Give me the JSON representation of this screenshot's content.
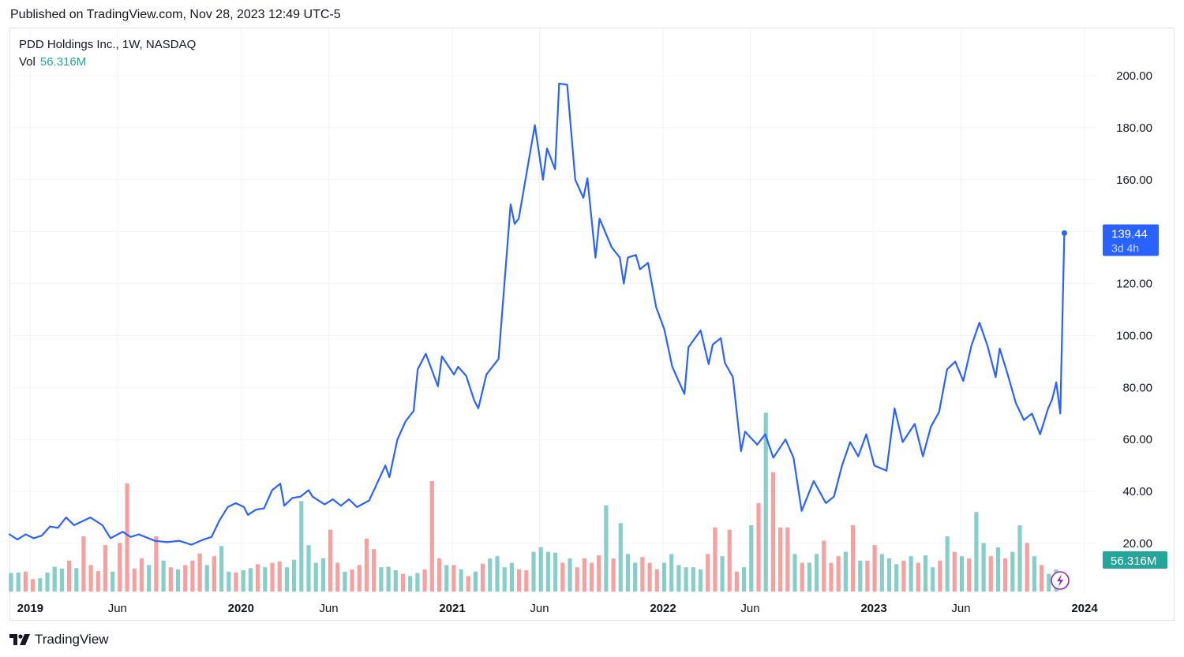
{
  "header": {
    "published": "Published on TradingView.com, Nov 28, 2023 12:49 UTC-5"
  },
  "legend": {
    "title": "PDD Holdings Inc., 1W, NASDAQ",
    "vol_label": "Vol",
    "vol_value": "56.316M"
  },
  "footer": {
    "brand": "TradingView"
  },
  "colors": {
    "line": "#2962ff",
    "vol_up": "#26a69a",
    "vol_down": "#ef5350",
    "grid": "#f0f3fa",
    "axis_text": "#131722",
    "badge_vol": "#26a69a",
    "badge_price": "#2962ff"
  },
  "chart_data": {
    "type": "line",
    "title": "PDD Holdings Inc., 1W, NASDAQ",
    "yticks": [
      "200.00",
      "180.00",
      "160.00",
      "140.00",
      "120.00",
      "100.00",
      "80.00",
      "60.00",
      "40.00",
      "20.00"
    ],
    "ylim": [
      0,
      200
    ],
    "xlim": [
      "2018-11-26",
      "2024-01-01"
    ],
    "xticks": [
      {
        "label": "2019",
        "date": "2019-01-01",
        "bold": true
      },
      {
        "label": "Jun",
        "date": "2019-06-01",
        "bold": false
      },
      {
        "label": "2020",
        "date": "2020-01-01",
        "bold": true
      },
      {
        "label": "Jun",
        "date": "2020-06-01",
        "bold": false
      },
      {
        "label": "2021",
        "date": "2021-01-01",
        "bold": true
      },
      {
        "label": "Jun",
        "date": "2021-06-01",
        "bold": false
      },
      {
        "label": "2022",
        "date": "2022-01-01",
        "bold": true
      },
      {
        "label": "Jun",
        "date": "2022-06-01",
        "bold": false
      },
      {
        "label": "2023",
        "date": "2023-01-01",
        "bold": true
      },
      {
        "label": "Jun",
        "date": "2023-06-01",
        "bold": false
      },
      {
        "label": "2024",
        "date": "2024-01-01",
        "bold": true
      }
    ],
    "last_price": {
      "value": 139.44,
      "label": "139.44",
      "countdown": "3d 4h"
    },
    "volume_label": "56.316M",
    "grid": true,
    "series": [
      {
        "values": [
          [
            "2018-11-26",
            23.5
          ],
          [
            "2018-12-10",
            21.5
          ],
          [
            "2018-12-24",
            23.5
          ],
          [
            "2019-01-07",
            22.0
          ],
          [
            "2019-01-21",
            23.0
          ],
          [
            "2019-02-04",
            26.5
          ],
          [
            "2019-02-18",
            26.0
          ],
          [
            "2019-03-04",
            30.0
          ],
          [
            "2019-03-18",
            27.0
          ],
          [
            "2019-04-01",
            28.5
          ],
          [
            "2019-04-15",
            30.0
          ],
          [
            "2019-05-06",
            27.0
          ],
          [
            "2019-05-20",
            22.0
          ],
          [
            "2019-06-10",
            24.5
          ],
          [
            "2019-06-24",
            22.5
          ],
          [
            "2019-07-08",
            23.5
          ],
          [
            "2019-08-05",
            21.0
          ],
          [
            "2019-08-26",
            20.5
          ],
          [
            "2019-09-16",
            21.0
          ],
          [
            "2019-10-07",
            19.5
          ],
          [
            "2019-10-28",
            21.5
          ],
          [
            "2019-11-11",
            22.5
          ],
          [
            "2019-11-25",
            29.0
          ],
          [
            "2019-12-09",
            34.0
          ],
          [
            "2019-12-23",
            35.5
          ],
          [
            "2020-01-06",
            34.0
          ],
          [
            "2020-01-13",
            31.0
          ],
          [
            "2020-01-27",
            33.0
          ],
          [
            "2020-02-10",
            33.5
          ],
          [
            "2020-02-24",
            40.5
          ],
          [
            "2020-03-09",
            43.0
          ],
          [
            "2020-03-16",
            34.5
          ],
          [
            "2020-03-30",
            37.5
          ],
          [
            "2020-04-13",
            38.0
          ],
          [
            "2020-04-27",
            40.5
          ],
          [
            "2020-05-04",
            38.0
          ],
          [
            "2020-05-25",
            35.0
          ],
          [
            "2020-06-08",
            37.0
          ],
          [
            "2020-06-22",
            34.5
          ],
          [
            "2020-07-06",
            37.0
          ],
          [
            "2020-07-20",
            34.0
          ],
          [
            "2020-08-10",
            36.5
          ],
          [
            "2020-09-07",
            50.0
          ],
          [
            "2020-09-14",
            45.5
          ],
          [
            "2020-09-28",
            60.0
          ],
          [
            "2020-10-12",
            67.0
          ],
          [
            "2020-10-26",
            71.0
          ],
          [
            "2020-11-02",
            87.0
          ],
          [
            "2020-11-16",
            93.0
          ],
          [
            "2020-12-07",
            80.5
          ],
          [
            "2020-12-14",
            92.0
          ],
          [
            "2021-01-04",
            85.0
          ],
          [
            "2021-01-11",
            88.0
          ],
          [
            "2021-01-25",
            84.5
          ],
          [
            "2021-02-08",
            75.0
          ],
          [
            "2021-02-15",
            72.0
          ],
          [
            "2021-03-01",
            85.0
          ],
          [
            "2021-03-22",
            91.0
          ],
          [
            "2021-04-12",
            150.5
          ],
          [
            "2021-04-19",
            143.0
          ],
          [
            "2021-04-26",
            145.0
          ],
          [
            "2021-05-24",
            181.0
          ],
          [
            "2021-06-07",
            160.0
          ],
          [
            "2021-06-14",
            172.0
          ],
          [
            "2021-06-28",
            164.0
          ],
          [
            "2021-07-05",
            197.0
          ],
          [
            "2021-07-19",
            196.5
          ],
          [
            "2021-08-02",
            160.0
          ],
          [
            "2021-08-16",
            153.0
          ],
          [
            "2021-08-23",
            160.5
          ],
          [
            "2021-09-06",
            130.0
          ],
          [
            "2021-09-13",
            145.0
          ],
          [
            "2021-10-04",
            134.0
          ],
          [
            "2021-10-18",
            130.0
          ],
          [
            "2021-10-25",
            120.0
          ],
          [
            "2021-11-01",
            130.0
          ],
          [
            "2021-11-15",
            131.0
          ],
          [
            "2021-11-22",
            125.5
          ],
          [
            "2021-12-06",
            128.0
          ],
          [
            "2021-12-20",
            111.0
          ],
          [
            "2022-01-03",
            102.5
          ],
          [
            "2022-01-17",
            88.0
          ],
          [
            "2022-02-07",
            77.5
          ],
          [
            "2022-02-14",
            95.5
          ],
          [
            "2022-03-07",
            102.0
          ],
          [
            "2022-03-21",
            89.0
          ],
          [
            "2022-03-28",
            96.5
          ],
          [
            "2022-04-11",
            99.0
          ],
          [
            "2022-04-18",
            89.5
          ],
          [
            "2022-05-02",
            84.0
          ],
          [
            "2022-05-16",
            55.5
          ],
          [
            "2022-05-23",
            63.0
          ],
          [
            "2022-06-13",
            58.0
          ],
          [
            "2022-06-27",
            62.0
          ],
          [
            "2022-07-11",
            53.0
          ],
          [
            "2022-08-01",
            60.0
          ],
          [
            "2022-08-15",
            53.0
          ],
          [
            "2022-08-29",
            32.5
          ],
          [
            "2022-09-19",
            44.0
          ],
          [
            "2022-10-10",
            35.5
          ],
          [
            "2022-10-24",
            38.0
          ],
          [
            "2022-11-07",
            50.0
          ],
          [
            "2022-11-21",
            59.0
          ],
          [
            "2022-12-05",
            53.5
          ],
          [
            "2022-12-19",
            62.0
          ],
          [
            "2023-01-02",
            50.0
          ],
          [
            "2023-01-23",
            48.0
          ],
          [
            "2023-02-06",
            72.0
          ],
          [
            "2023-02-20",
            59.0
          ],
          [
            "2023-03-13",
            66.0
          ],
          [
            "2023-03-27",
            53.5
          ],
          [
            "2023-04-10",
            65.0
          ],
          [
            "2023-04-24",
            70.5
          ],
          [
            "2023-05-08",
            87.0
          ],
          [
            "2023-05-22",
            90.0
          ],
          [
            "2023-06-05",
            82.5
          ],
          [
            "2023-06-19",
            96.0
          ],
          [
            "2023-07-03",
            105.0
          ],
          [
            "2023-07-17",
            96.0
          ],
          [
            "2023-07-31",
            84.0
          ],
          [
            "2023-08-07",
            95.0
          ],
          [
            "2023-08-21",
            85.0
          ],
          [
            "2023-09-04",
            74.0
          ],
          [
            "2023-09-18",
            67.5
          ],
          [
            "2023-10-02",
            70.0
          ],
          [
            "2023-10-16",
            62.0
          ],
          [
            "2023-10-30",
            72.0
          ],
          [
            "2023-11-06",
            75.5
          ],
          [
            "2023-11-13",
            82.0
          ],
          [
            "2023-11-20",
            70.0
          ],
          [
            "2023-11-27",
            139.44
          ]
        ]
      }
    ],
    "volume": [
      {
        "v": 4.2,
        "up": true
      },
      {
        "v": 4.3,
        "up": true
      },
      {
        "v": 4.5,
        "up": false
      },
      {
        "v": 2.8,
        "up": false
      },
      {
        "v": 3.0,
        "up": true
      },
      {
        "v": 4.3,
        "up": true
      },
      {
        "v": 5.6,
        "up": true
      },
      {
        "v": 5.2,
        "up": true
      },
      {
        "v": 7.0,
        "up": false
      },
      {
        "v": 5.3,
        "up": true
      },
      {
        "v": 12.5,
        "up": false
      },
      {
        "v": 6.0,
        "up": false
      },
      {
        "v": 4.6,
        "up": false
      },
      {
        "v": 10.5,
        "up": false
      },
      {
        "v": 4.5,
        "up": true
      },
      {
        "v": 11.0,
        "up": false
      },
      {
        "v": 24.5,
        "up": false
      },
      {
        "v": 5.2,
        "up": false
      },
      {
        "v": 7.5,
        "up": false
      },
      {
        "v": 6.0,
        "up": true
      },
      {
        "v": 12.5,
        "up": false
      },
      {
        "v": 7.0,
        "up": true
      },
      {
        "v": 5.5,
        "up": false
      },
      {
        "v": 5.0,
        "up": true
      },
      {
        "v": 6.0,
        "up": false
      },
      {
        "v": 7.0,
        "up": false
      },
      {
        "v": 8.6,
        "up": false
      },
      {
        "v": 6.0,
        "up": true
      },
      {
        "v": 8.0,
        "up": false
      },
      {
        "v": 10.3,
        "up": true
      },
      {
        "v": 4.5,
        "up": true
      },
      {
        "v": 4.3,
        "up": false
      },
      {
        "v": 4.8,
        "up": true
      },
      {
        "v": 5.3,
        "up": true
      },
      {
        "v": 6.2,
        "up": false
      },
      {
        "v": 5.5,
        "up": true
      },
      {
        "v": 6.5,
        "up": false
      },
      {
        "v": 6.8,
        "up": false
      },
      {
        "v": 5.5,
        "up": true
      },
      {
        "v": 7.2,
        "up": true
      },
      {
        "v": 20.5,
        "up": true
      },
      {
        "v": 10.5,
        "up": true
      },
      {
        "v": 6.5,
        "up": true
      },
      {
        "v": 7.5,
        "up": true
      },
      {
        "v": 14.0,
        "up": false
      },
      {
        "v": 6.5,
        "up": false
      },
      {
        "v": 4.5,
        "up": true
      },
      {
        "v": 5.0,
        "up": false
      },
      {
        "v": 6.0,
        "up": false
      },
      {
        "v": 12.0,
        "up": false
      },
      {
        "v": 9.6,
        "up": false
      },
      {
        "v": 5.5,
        "up": true
      },
      {
        "v": 5.6,
        "up": true
      },
      {
        "v": 4.8,
        "up": true
      },
      {
        "v": 4.0,
        "up": false
      },
      {
        "v": 3.5,
        "up": true
      },
      {
        "v": 4.2,
        "up": true
      },
      {
        "v": 5.0,
        "up": false
      },
      {
        "v": 25.0,
        "up": false
      },
      {
        "v": 7.5,
        "up": false
      },
      {
        "v": 6.0,
        "up": true
      },
      {
        "v": 6.0,
        "up": false
      },
      {
        "v": 5.0,
        "up": true
      },
      {
        "v": 3.5,
        "up": false
      },
      {
        "v": 4.5,
        "up": true
      },
      {
        "v": 6.3,
        "up": false
      },
      {
        "v": 7.5,
        "up": true
      },
      {
        "v": 8.0,
        "up": true
      },
      {
        "v": 5.5,
        "up": true
      },
      {
        "v": 6.5,
        "up": true
      },
      {
        "v": 5.0,
        "up": false
      },
      {
        "v": 4.8,
        "up": false
      },
      {
        "v": 9.0,
        "up": true
      },
      {
        "v": 10.0,
        "up": true
      },
      {
        "v": 9.0,
        "up": true
      },
      {
        "v": 8.8,
        "up": true
      },
      {
        "v": 6.5,
        "up": false
      },
      {
        "v": 7.5,
        "up": true
      },
      {
        "v": 5.5,
        "up": false
      },
      {
        "v": 7.5,
        "up": false
      },
      {
        "v": 6.5,
        "up": false
      },
      {
        "v": 8.2,
        "up": false
      },
      {
        "v": 19.5,
        "up": true
      },
      {
        "v": 7.5,
        "up": false
      },
      {
        "v": 15.5,
        "up": true
      },
      {
        "v": 8.5,
        "up": true
      },
      {
        "v": 6.5,
        "up": true
      },
      {
        "v": 7.8,
        "up": false
      },
      {
        "v": 6.5,
        "up": false
      },
      {
        "v": 5.0,
        "up": false
      },
      {
        "v": 6.5,
        "up": true
      },
      {
        "v": 8.5,
        "up": true
      },
      {
        "v": 6.0,
        "up": true
      },
      {
        "v": 5.5,
        "up": true
      },
      {
        "v": 5.5,
        "up": true
      },
      {
        "v": 5.0,
        "up": true
      },
      {
        "v": 8.5,
        "up": false
      },
      {
        "v": 14.5,
        "up": false
      },
      {
        "v": 8.0,
        "up": true
      },
      {
        "v": 14.0,
        "up": false
      },
      {
        "v": 4.5,
        "up": false
      },
      {
        "v": 5.5,
        "up": true
      },
      {
        "v": 15.0,
        "up": true
      },
      {
        "v": 20.0,
        "up": false
      },
      {
        "v": 40.5,
        "up": true
      },
      {
        "v": 27.0,
        "up": false
      },
      {
        "v": 14.5,
        "up": false
      },
      {
        "v": 14.5,
        "up": false
      },
      {
        "v": 8.5,
        "up": true
      },
      {
        "v": 6.5,
        "up": false
      },
      {
        "v": 6.5,
        "up": true
      },
      {
        "v": 8.5,
        "up": true
      },
      {
        "v": 11.5,
        "up": false
      },
      {
        "v": 6.5,
        "up": false
      },
      {
        "v": 8.0,
        "up": false
      },
      {
        "v": 9.0,
        "up": true
      },
      {
        "v": 15.0,
        "up": false
      },
      {
        "v": 7.0,
        "up": true
      },
      {
        "v": 7.0,
        "up": false
      },
      {
        "v": 10.5,
        "up": false
      },
      {
        "v": 8.5,
        "up": true
      },
      {
        "v": 7.5,
        "up": true
      },
      {
        "v": 6.2,
        "up": true
      },
      {
        "v": 7.0,
        "up": false
      },
      {
        "v": 8.0,
        "up": true
      },
      {
        "v": 6.5,
        "up": false
      },
      {
        "v": 8.2,
        "up": true
      },
      {
        "v": 5.5,
        "up": true
      },
      {
        "v": 7.0,
        "up": false
      },
      {
        "v": 12.5,
        "up": true
      },
      {
        "v": 9.0,
        "up": false
      },
      {
        "v": 8.0,
        "up": true
      },
      {
        "v": 7.5,
        "up": false
      },
      {
        "v": 18.0,
        "up": true
      },
      {
        "v": 11.0,
        "up": true
      },
      {
        "v": 8.0,
        "up": false
      },
      {
        "v": 10.0,
        "up": true
      },
      {
        "v": 7.5,
        "up": false
      },
      {
        "v": 9.0,
        "up": true
      },
      {
        "v": 15.0,
        "up": true
      },
      {
        "v": 11.0,
        "up": false
      },
      {
        "v": 8.0,
        "up": true
      },
      {
        "v": 6.0,
        "up": false
      },
      {
        "v": 4.0,
        "up": true
      },
      {
        "v": 5.0,
        "up": true
      }
    ]
  }
}
